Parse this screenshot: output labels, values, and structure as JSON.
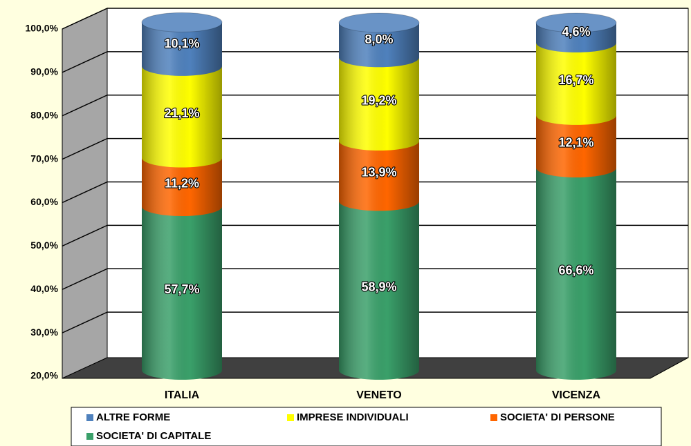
{
  "chart_data": {
    "type": "stacked_bar_3d",
    "categories": [
      "ITALIA",
      "VENETO",
      "VICENZA"
    ],
    "series": [
      {
        "name": "ALTRE FORME",
        "color": "#4f81bd",
        "values": [
          10.1,
          8.0,
          4.6
        ],
        "value_labels": [
          "10,1%",
          "8,0%",
          "4,6%"
        ]
      },
      {
        "name": "IMPRESE INDIVIDUALI",
        "color": "#ffff00",
        "values": [
          21.1,
          19.2,
          16.7
        ],
        "value_labels": [
          "21,1%",
          "19,2%",
          "16,7%"
        ]
      },
      {
        "name": "SOCIETA' DI PERSONE",
        "color": "#ff6600",
        "values": [
          11.2,
          13.9,
          12.1
        ],
        "value_labels": [
          "11,2%",
          "13,9%",
          "12,1%"
        ]
      },
      {
        "name": "SOCIETA' DI CAPITALE",
        "color": "#3aa06a",
        "values": [
          57.7,
          58.9,
          66.6
        ],
        "value_labels": [
          "57,7%",
          "58,9%",
          "66,6%"
        ]
      }
    ],
    "ylim": [
      20,
      100
    ],
    "yticks": [
      {
        "value": 20,
        "label": "20,0%"
      },
      {
        "value": 30,
        "label": "30,0%"
      },
      {
        "value": 40,
        "label": "40,0%"
      },
      {
        "value": 50,
        "label": "50,0%"
      },
      {
        "value": 60,
        "label": "60,0%"
      },
      {
        "value": 70,
        "label": "70,0%"
      },
      {
        "value": 80,
        "label": "80,0%"
      },
      {
        "value": 90,
        "label": "90,0%"
      },
      {
        "value": 100,
        "label": "100,0%"
      }
    ],
    "grid": true,
    "legend": "bottom"
  }
}
